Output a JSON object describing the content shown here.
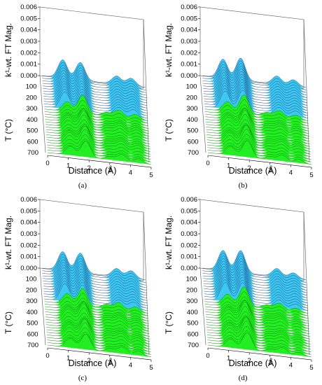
{
  "chart_data": [
    {
      "type": "area",
      "caption": "(a)",
      "ylabel": "k¹-wt. FT Mag.",
      "xlabel": "Distance (Å)",
      "depth_label": "T (°C)",
      "z_ticks": [
        "0.006",
        "0.005",
        "0.004",
        "0.003",
        "0.002",
        "0.001",
        "0.000"
      ],
      "x_ticks": [
        "0",
        "1",
        "2",
        "3",
        "4",
        "5"
      ],
      "t_ticks": [
        "100",
        "200",
        "300",
        "400",
        "500",
        "600",
        "700"
      ],
      "zlim": [
        0,
        0.006
      ],
      "xlim": [
        0,
        5
      ],
      "tlim": [
        0,
        700
      ],
      "series_colors": {
        "low_temperature": "#3cc8f0",
        "high_temperature": "#22ee22"
      },
      "peaks_low_T": [
        [
          1.0,
          0.0029
        ],
        [
          1.85,
          0.0028
        ],
        [
          3.6,
          0.0013
        ],
        [
          4.3,
          0.0012
        ]
      ],
      "peaks_high_T": [
        [
          1.1,
          0.0016
        ],
        [
          1.85,
          0.0029
        ],
        [
          3.0,
          0.0006
        ],
        [
          3.6,
          0.0012
        ],
        [
          4.4,
          0.0008
        ]
      ]
    },
    {
      "type": "area",
      "caption": "(b)",
      "ylabel": "k¹-wt. FT Mag.",
      "xlabel": "Distance (Å)",
      "depth_label": "T (°C)",
      "z_ticks": [
        "0.006",
        "0.005",
        "0.004",
        "0.003",
        "0.002",
        "0.001",
        "0.000"
      ],
      "x_ticks": [
        "0",
        "1",
        "2",
        "3",
        "4",
        "5"
      ],
      "t_ticks": [
        "100",
        "200",
        "300",
        "400",
        "500",
        "600",
        "700"
      ],
      "zlim": [
        0,
        0.006
      ],
      "xlim": [
        0,
        5
      ],
      "tlim": [
        0,
        700
      ],
      "series_colors": {
        "low_temperature": "#3cc8f0",
        "high_temperature": "#22ee22"
      },
      "peaks_low_T": [
        [
          1.0,
          0.003
        ],
        [
          1.85,
          0.0035
        ],
        [
          3.6,
          0.0013
        ],
        [
          4.4,
          0.001
        ]
      ],
      "peaks_high_T": [
        [
          1.1,
          0.0016
        ],
        [
          1.9,
          0.003
        ],
        [
          3.0,
          0.0006
        ],
        [
          3.6,
          0.0011
        ],
        [
          4.4,
          0.0007
        ]
      ]
    },
    {
      "type": "area",
      "caption": "(c)",
      "ylabel": "k¹-wt. FT Mag.",
      "xlabel": "Distance (Å)",
      "depth_label": "T (°C)",
      "z_ticks": [
        "0.006",
        "0.005",
        "0.004",
        "0.003",
        "0.002",
        "0.001",
        "0.000"
      ],
      "x_ticks": [
        "0",
        "1",
        "2",
        "3",
        "4",
        "5"
      ],
      "t_ticks": [
        "100",
        "200",
        "300",
        "400",
        "500",
        "600",
        "700"
      ],
      "zlim": [
        0,
        0.006
      ],
      "xlim": [
        0,
        5
      ],
      "tlim": [
        0,
        700
      ],
      "series_colors": {
        "low_temperature": "#3cc8f0",
        "high_temperature": "#22ee22"
      },
      "peaks_low_T": [
        [
          1.0,
          0.003
        ],
        [
          1.85,
          0.0031
        ],
        [
          3.6,
          0.0013
        ],
        [
          4.3,
          0.0012
        ]
      ],
      "peaks_high_T": [
        [
          1.1,
          0.0017
        ],
        [
          1.85,
          0.0028
        ],
        [
          3.0,
          0.0007
        ],
        [
          3.6,
          0.0012
        ],
        [
          4.4,
          0.0008
        ]
      ]
    },
    {
      "type": "area",
      "caption": "(d)",
      "ylabel": "k¹-wt. FT Mag.",
      "xlabel": "Distance (Å)",
      "depth_label": "T (°C)",
      "z_ticks": [
        "0.006",
        "0.005",
        "0.004",
        "0.003",
        "0.002",
        "0.001",
        "0.000"
      ],
      "x_ticks": [
        "0",
        "1",
        "2",
        "3",
        "4",
        "5"
      ],
      "t_ticks": [
        "100",
        "200",
        "300",
        "400",
        "500",
        "600",
        "700"
      ],
      "zlim": [
        0,
        0.006
      ],
      "xlim": [
        0,
        5
      ],
      "tlim": [
        0,
        700
      ],
      "series_colors": {
        "low_temperature": "#3cc8f0",
        "high_temperature": "#22ee22"
      },
      "peaks_low_T": [
        [
          1.0,
          0.0032
        ],
        [
          1.85,
          0.0035
        ],
        [
          3.6,
          0.0013
        ],
        [
          4.4,
          0.0009
        ]
      ],
      "peaks_high_T": [
        [
          1.1,
          0.0016
        ],
        [
          1.9,
          0.0031
        ],
        [
          3.0,
          0.0006
        ],
        [
          3.6,
          0.0011
        ],
        [
          4.4,
          0.0006
        ]
      ]
    }
  ]
}
